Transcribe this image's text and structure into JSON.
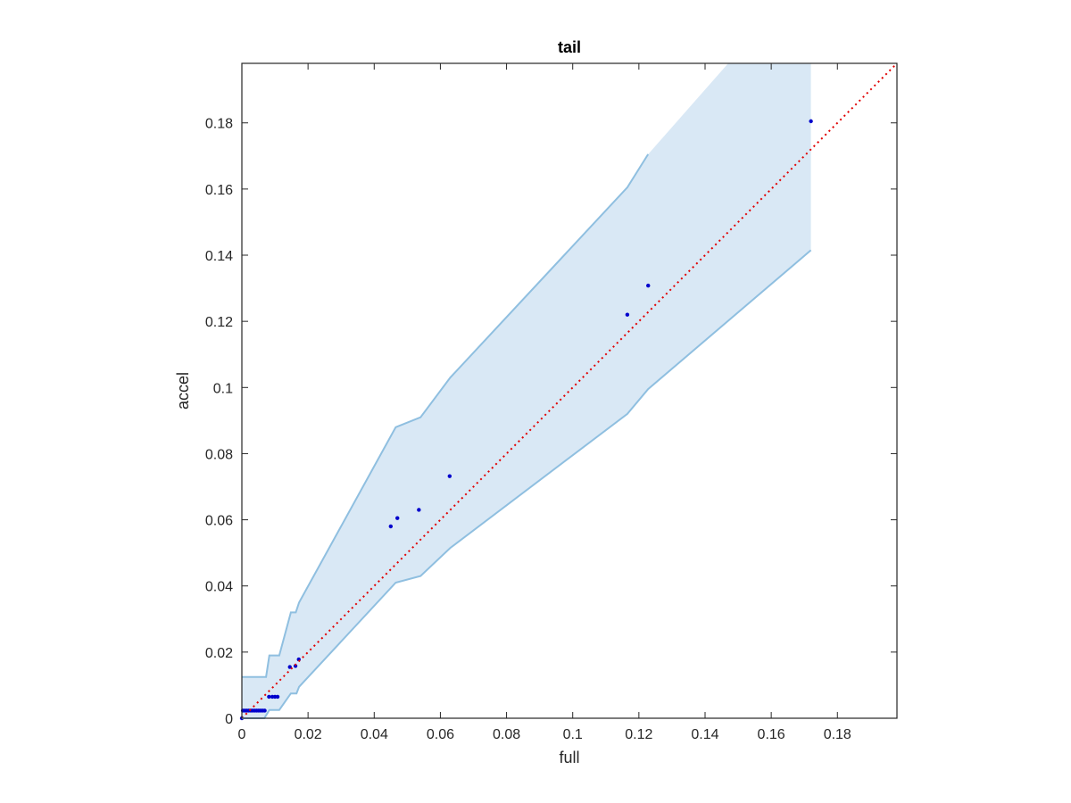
{
  "chart_data": {
    "type": "scatter",
    "title": "tail",
    "xlabel": "full",
    "ylabel": "accel",
    "xlim": [
      0,
      0.198
    ],
    "ylim": [
      0,
      0.198
    ],
    "xticks": [
      0,
      0.02,
      0.04,
      0.06,
      0.08,
      0.1,
      0.12,
      0.14,
      0.16,
      0.18
    ],
    "xtick_labels": [
      "0",
      "0.02",
      "0.04",
      "0.06",
      "0.08",
      "0.1",
      "0.12",
      "0.14",
      "0.16",
      "0.18"
    ],
    "yticks": [
      0,
      0.02,
      0.04,
      0.06,
      0.08,
      0.1,
      0.12,
      0.14,
      0.16,
      0.18
    ],
    "ytick_labels": [
      "0",
      "0.02",
      "0.04",
      "0.06",
      "0.08",
      "0.1",
      "0.12",
      "0.14",
      "0.16",
      "0.18"
    ],
    "grid": false,
    "colors": {
      "points": "#0000cc",
      "band_fill": "#d9e8f5",
      "band_edge": "#8fbfe0",
      "reference_line": "#e00000",
      "axes": "#262626"
    },
    "band": {
      "upper": [
        [
          0,
          0.0125
        ],
        [
          0.0073,
          0.0125
        ],
        [
          0.0083,
          0.019
        ],
        [
          0.0113,
          0.019
        ],
        [
          0.0148,
          0.032
        ],
        [
          0.0163,
          0.032
        ],
        [
          0.0173,
          0.035
        ],
        [
          0.0465,
          0.088
        ],
        [
          0.054,
          0.091
        ],
        [
          0.063,
          0.103
        ],
        [
          0.1165,
          0.1605
        ],
        [
          0.1228,
          0.1705
        ],
        [
          0.147,
          0.198
        ],
        [
          0.172,
          0.198
        ]
      ],
      "lower": [
        [
          0.172,
          0.1415
        ],
        [
          0.1228,
          0.0995
        ],
        [
          0.1165,
          0.092
        ],
        [
          0.063,
          0.0515
        ],
        [
          0.054,
          0.043
        ],
        [
          0.0465,
          0.041
        ],
        [
          0.0173,
          0.0095
        ],
        [
          0.0165,
          0.0075
        ],
        [
          0.0148,
          0.0075
        ],
        [
          0.0113,
          0.0025
        ],
        [
          0.0083,
          0.0025
        ],
        [
          0.0068,
          0
        ],
        [
          0,
          0
        ]
      ]
    },
    "reference_line": {
      "from": [
        0,
        0
      ],
      "to": [
        0.198,
        0.198
      ],
      "style": "dotted"
    },
    "points": [
      [
        0,
        0
      ],
      [
        0.0003,
        0.0023
      ],
      [
        0.0009,
        0.0023
      ],
      [
        0.0015,
        0.0023
      ],
      [
        0.0021,
        0.0023
      ],
      [
        0.0027,
        0.0023
      ],
      [
        0.0033,
        0.0023
      ],
      [
        0.0039,
        0.0023
      ],
      [
        0.0045,
        0.0023
      ],
      [
        0.0051,
        0.0023
      ],
      [
        0.0057,
        0.0023
      ],
      [
        0.0063,
        0.0023
      ],
      [
        0.0069,
        0.0023
      ],
      [
        0.0082,
        0.0065
      ],
      [
        0.0092,
        0.0065
      ],
      [
        0.01,
        0.0065
      ],
      [
        0.0108,
        0.0065
      ],
      [
        0.0145,
        0.0155
      ],
      [
        0.0162,
        0.0158
      ],
      [
        0.0172,
        0.0178
      ],
      [
        0.045,
        0.058
      ],
      [
        0.047,
        0.0605
      ],
      [
        0.0535,
        0.063
      ],
      [
        0.0628,
        0.0732
      ],
      [
        0.1165,
        0.122
      ],
      [
        0.1228,
        0.1308
      ],
      [
        0.172,
        0.1805
      ]
    ]
  }
}
